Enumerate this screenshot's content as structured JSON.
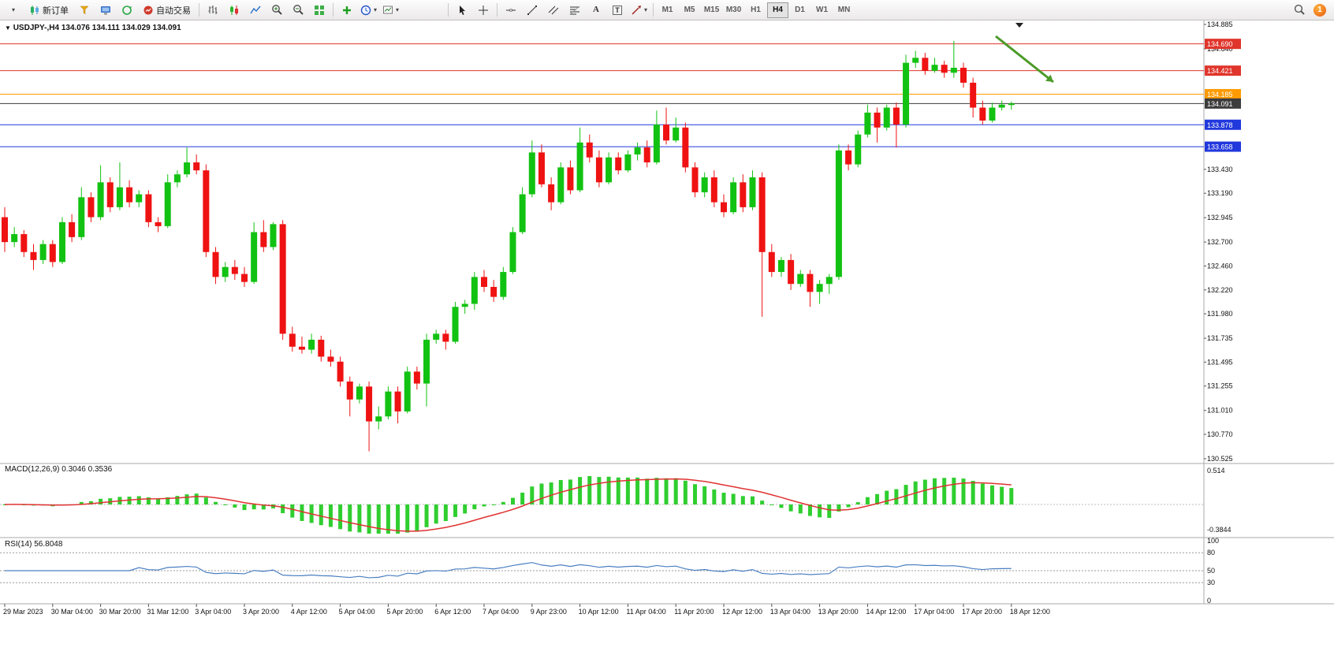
{
  "toolbar": {
    "new_order": "新订单",
    "auto_trading": "自动交易",
    "timeframes": [
      "M1",
      "M5",
      "M15",
      "M30",
      "H1",
      "H4",
      "D1",
      "W1",
      "MN"
    ],
    "active_timeframe": "H4",
    "notification_count": "1"
  },
  "icons": {
    "caret": "▾",
    "symbol_caret": "▼",
    "text_tool": "A",
    "label_tool": "T"
  },
  "chart": {
    "symbol_ohlc": "USDJPY-,H4 134.076 134.111 134.029 134.091",
    "macd_label": "MACD(12,26,9) 0.3046 0.3536",
    "rsi_label": "RSI(14) 56.8048"
  },
  "colors": {
    "bull": "#12c212",
    "bear": "#ef1212",
    "macd_hist": "#2fce2f",
    "macd_signal": "#e03232",
    "rsi_line": "#4a7fc1",
    "level_red": "#e0352b",
    "level_orange": "#ff9b00",
    "level_blue": "#2138dd",
    "current_price": "#3c3c3c",
    "annotation_green": "#4c9a2a"
  },
  "chart_data": {
    "type": "candlestick",
    "symbol": "USDJPY-",
    "timeframe": "H4",
    "ohlc": {
      "open": 134.076,
      "high": 134.111,
      "low": 134.029,
      "close": 134.091
    },
    "price_range": [
      130.525,
      134.885
    ],
    "price_labels": [
      "134.885",
      "134.640",
      "133.430",
      "133.190",
      "132.945",
      "132.700",
      "132.460",
      "132.220",
      "131.980",
      "131.735",
      "131.495",
      "131.255",
      "131.010",
      "130.770",
      "130.525"
    ],
    "levels": [
      {
        "price": 134.69,
        "label": "134.690",
        "color": "#e0352b"
      },
      {
        "price": 134.421,
        "label": "134.421",
        "color": "#e0352b"
      },
      {
        "price": 134.185,
        "label": "134.185",
        "color": "#ff9b00"
      },
      {
        "price": 134.091,
        "label": "134.091",
        "color": "#3c3c3c",
        "current": true
      },
      {
        "price": 133.878,
        "label": "133.878",
        "color": "#2138dd"
      },
      {
        "price": 133.658,
        "label": "133.658",
        "color": "#2138dd"
      }
    ],
    "time_labels": [
      "29 Mar 2023",
      "30 Mar 04:00",
      "30 Mar 20:00",
      "31 Mar 12:00",
      "3 Apr 04:00",
      "3 Apr 20:00",
      "4 Apr 12:00",
      "5 Apr 04:00",
      "5 Apr 20:00",
      "6 Apr 12:00",
      "7 Apr 04:00",
      "9 Apr 23:00",
      "10 Apr 12:00",
      "11 Apr 04:00",
      "11 Apr 20:00",
      "12 Apr 12:00",
      "13 Apr 04:00",
      "13 Apr 20:00",
      "14 Apr 12:00",
      "17 Apr 04:00",
      "17 Apr 20:00",
      "18 Apr 12:00"
    ],
    "indicators": {
      "macd": {
        "params": [
          12,
          26,
          9
        ],
        "macd_value": 0.3046,
        "signal_value": 0.3536,
        "axis_labels": [
          "0.514",
          "-0.3844"
        ],
        "range": [
          -0.3844,
          0.514
        ]
      },
      "rsi": {
        "period": 14,
        "value": 56.8048,
        "axis_labels": [
          "100",
          "80",
          "50",
          "30",
          "0"
        ],
        "levels": [
          80,
          50,
          30
        ]
      }
    },
    "annotation": {
      "type": "arrow",
      "color": "#4c9a2a",
      "from": [
        1263,
        46
      ],
      "to": [
        1336,
        104
      ]
    },
    "candles": [
      [
        132.95,
        133.05,
        132.6,
        132.7
      ],
      [
        132.7,
        132.85,
        132.65,
        132.78
      ],
      [
        132.78,
        132.82,
        132.55,
        132.6
      ],
      [
        132.6,
        132.68,
        132.42,
        132.52
      ],
      [
        132.52,
        132.72,
        132.48,
        132.68
      ],
      [
        132.68,
        132.72,
        132.45,
        132.5
      ],
      [
        132.5,
        132.95,
        132.48,
        132.9
      ],
      [
        132.9,
        132.98,
        132.7,
        132.75
      ],
      [
        132.75,
        133.25,
        132.72,
        133.15
      ],
      [
        133.15,
        133.2,
        132.9,
        132.95
      ],
      [
        132.95,
        133.47,
        132.92,
        133.3
      ],
      [
        133.3,
        133.35,
        133.0,
        133.05
      ],
      [
        133.05,
        133.5,
        133.02,
        133.25
      ],
      [
        133.25,
        133.32,
        133.05,
        133.1
      ],
      [
        133.1,
        133.22,
        133.05,
        133.18
      ],
      [
        133.18,
        133.22,
        132.85,
        132.9
      ],
      [
        132.9,
        132.95,
        132.8,
        132.86
      ],
      [
        132.86,
        133.38,
        132.84,
        133.3
      ],
      [
        133.3,
        133.42,
        133.25,
        133.38
      ],
      [
        133.38,
        133.65,
        133.35,
        133.5
      ],
      [
        133.5,
        133.58,
        133.38,
        133.42
      ],
      [
        133.42,
        133.48,
        132.55,
        132.6
      ],
      [
        132.6,
        132.65,
        132.28,
        132.35
      ],
      [
        132.35,
        132.5,
        132.3,
        132.45
      ],
      [
        132.45,
        132.52,
        132.32,
        132.38
      ],
      [
        132.38,
        132.45,
        132.25,
        132.3
      ],
      [
        132.3,
        132.9,
        132.28,
        132.8
      ],
      [
        132.8,
        132.92,
        132.6,
        132.65
      ],
      [
        132.65,
        132.9,
        132.62,
        132.88
      ],
      [
        132.88,
        132.92,
        131.72,
        131.78
      ],
      [
        131.78,
        131.85,
        131.6,
        131.65
      ],
      [
        131.65,
        131.75,
        131.58,
        131.62
      ],
      [
        131.62,
        131.78,
        131.58,
        131.72
      ],
      [
        131.72,
        131.76,
        131.5,
        131.55
      ],
      [
        131.55,
        131.62,
        131.45,
        131.5
      ],
      [
        131.5,
        131.55,
        131.25,
        131.3
      ],
      [
        131.3,
        131.35,
        130.95,
        131.12
      ],
      [
        131.12,
        131.28,
        131.08,
        131.25
      ],
      [
        131.25,
        131.3,
        130.6,
        130.9
      ],
      [
        130.9,
        131.05,
        130.82,
        130.95
      ],
      [
        130.95,
        131.25,
        130.92,
        131.2
      ],
      [
        131.2,
        131.25,
        130.88,
        131.0
      ],
      [
        131.0,
        131.45,
        130.98,
        131.4
      ],
      [
        131.4,
        131.45,
        131.22,
        131.28
      ],
      [
        131.28,
        131.78,
        131.05,
        131.72
      ],
      [
        131.72,
        131.82,
        131.68,
        131.78
      ],
      [
        131.78,
        131.82,
        131.62,
        131.7
      ],
      [
        131.7,
        132.1,
        131.68,
        132.05
      ],
      [
        132.05,
        132.12,
        131.98,
        132.08
      ],
      [
        132.08,
        132.4,
        132.02,
        132.35
      ],
      [
        132.35,
        132.42,
        132.2,
        132.25
      ],
      [
        132.25,
        132.32,
        132.1,
        132.15
      ],
      [
        132.15,
        132.45,
        132.12,
        132.4
      ],
      [
        132.4,
        132.85,
        132.38,
        132.8
      ],
      [
        132.8,
        133.25,
        132.78,
        133.18
      ],
      [
        133.18,
        133.72,
        133.15,
        133.6
      ],
      [
        133.6,
        133.68,
        133.25,
        133.28
      ],
      [
        133.28,
        133.35,
        133.02,
        133.1
      ],
      [
        133.1,
        133.5,
        133.08,
        133.45
      ],
      [
        133.45,
        133.52,
        133.18,
        133.22
      ],
      [
        133.22,
        133.85,
        133.2,
        133.7
      ],
      [
        133.7,
        133.78,
        133.5,
        133.55
      ],
      [
        133.55,
        133.62,
        133.25,
        133.3
      ],
      [
        133.3,
        133.6,
        133.28,
        133.55
      ],
      [
        133.55,
        133.6,
        133.38,
        133.42
      ],
      [
        133.42,
        133.62,
        133.4,
        133.58
      ],
      [
        133.58,
        133.7,
        133.52,
        133.65
      ],
      [
        133.65,
        133.72,
        133.45,
        133.5
      ],
      [
        133.5,
        134.02,
        133.48,
        133.88
      ],
      [
        133.88,
        134.05,
        133.68,
        133.72
      ],
      [
        133.72,
        133.95,
        133.7,
        133.85
      ],
      [
        133.85,
        133.9,
        133.4,
        133.45
      ],
      [
        133.45,
        133.5,
        133.15,
        133.2
      ],
      [
        133.2,
        133.4,
        133.15,
        133.35
      ],
      [
        133.35,
        133.42,
        133.05,
        133.1
      ],
      [
        133.1,
        133.18,
        132.95,
        133.0
      ],
      [
        133.0,
        133.35,
        132.98,
        133.3
      ],
      [
        133.3,
        133.38,
        133.0,
        133.05
      ],
      [
        133.05,
        133.42,
        133.02,
        133.35
      ],
      [
        133.35,
        133.4,
        131.95,
        132.6
      ],
      [
        132.6,
        132.68,
        132.35,
        132.4
      ],
      [
        132.4,
        132.55,
        132.35,
        132.52
      ],
      [
        132.52,
        132.58,
        132.22,
        132.28
      ],
      [
        132.28,
        132.42,
        132.25,
        132.38
      ],
      [
        132.38,
        132.42,
        132.05,
        132.2
      ],
      [
        132.2,
        132.32,
        132.08,
        132.28
      ],
      [
        132.28,
        132.38,
        132.18,
        132.35
      ],
      [
        132.35,
        133.68,
        132.32,
        133.62
      ],
      [
        133.62,
        133.68,
        133.42,
        133.48
      ],
      [
        133.48,
        133.82,
        133.45,
        133.78
      ],
      [
        133.78,
        134.08,
        133.75,
        134.0
      ],
      [
        134.0,
        134.05,
        133.7,
        133.85
      ],
      [
        133.85,
        134.08,
        133.82,
        134.05
      ],
      [
        134.05,
        134.1,
        133.65,
        133.88
      ],
      [
        133.88,
        134.58,
        133.85,
        134.5
      ],
      [
        134.5,
        134.62,
        134.45,
        134.55
      ],
      [
        134.55,
        134.6,
        134.38,
        134.42
      ],
      [
        134.42,
        134.55,
        134.4,
        134.48
      ],
      [
        134.48,
        134.52,
        134.35,
        134.4
      ],
      [
        134.4,
        134.72,
        134.35,
        134.45
      ],
      [
        134.45,
        134.5,
        134.25,
        134.3
      ],
      [
        134.3,
        134.35,
        133.95,
        134.05
      ],
      [
        134.05,
        134.12,
        133.88,
        133.92
      ],
      [
        133.92,
        134.1,
        133.9,
        134.05
      ],
      [
        134.05,
        134.12,
        134.02,
        134.08
      ],
      [
        134.076,
        134.111,
        134.029,
        134.091
      ]
    ]
  }
}
